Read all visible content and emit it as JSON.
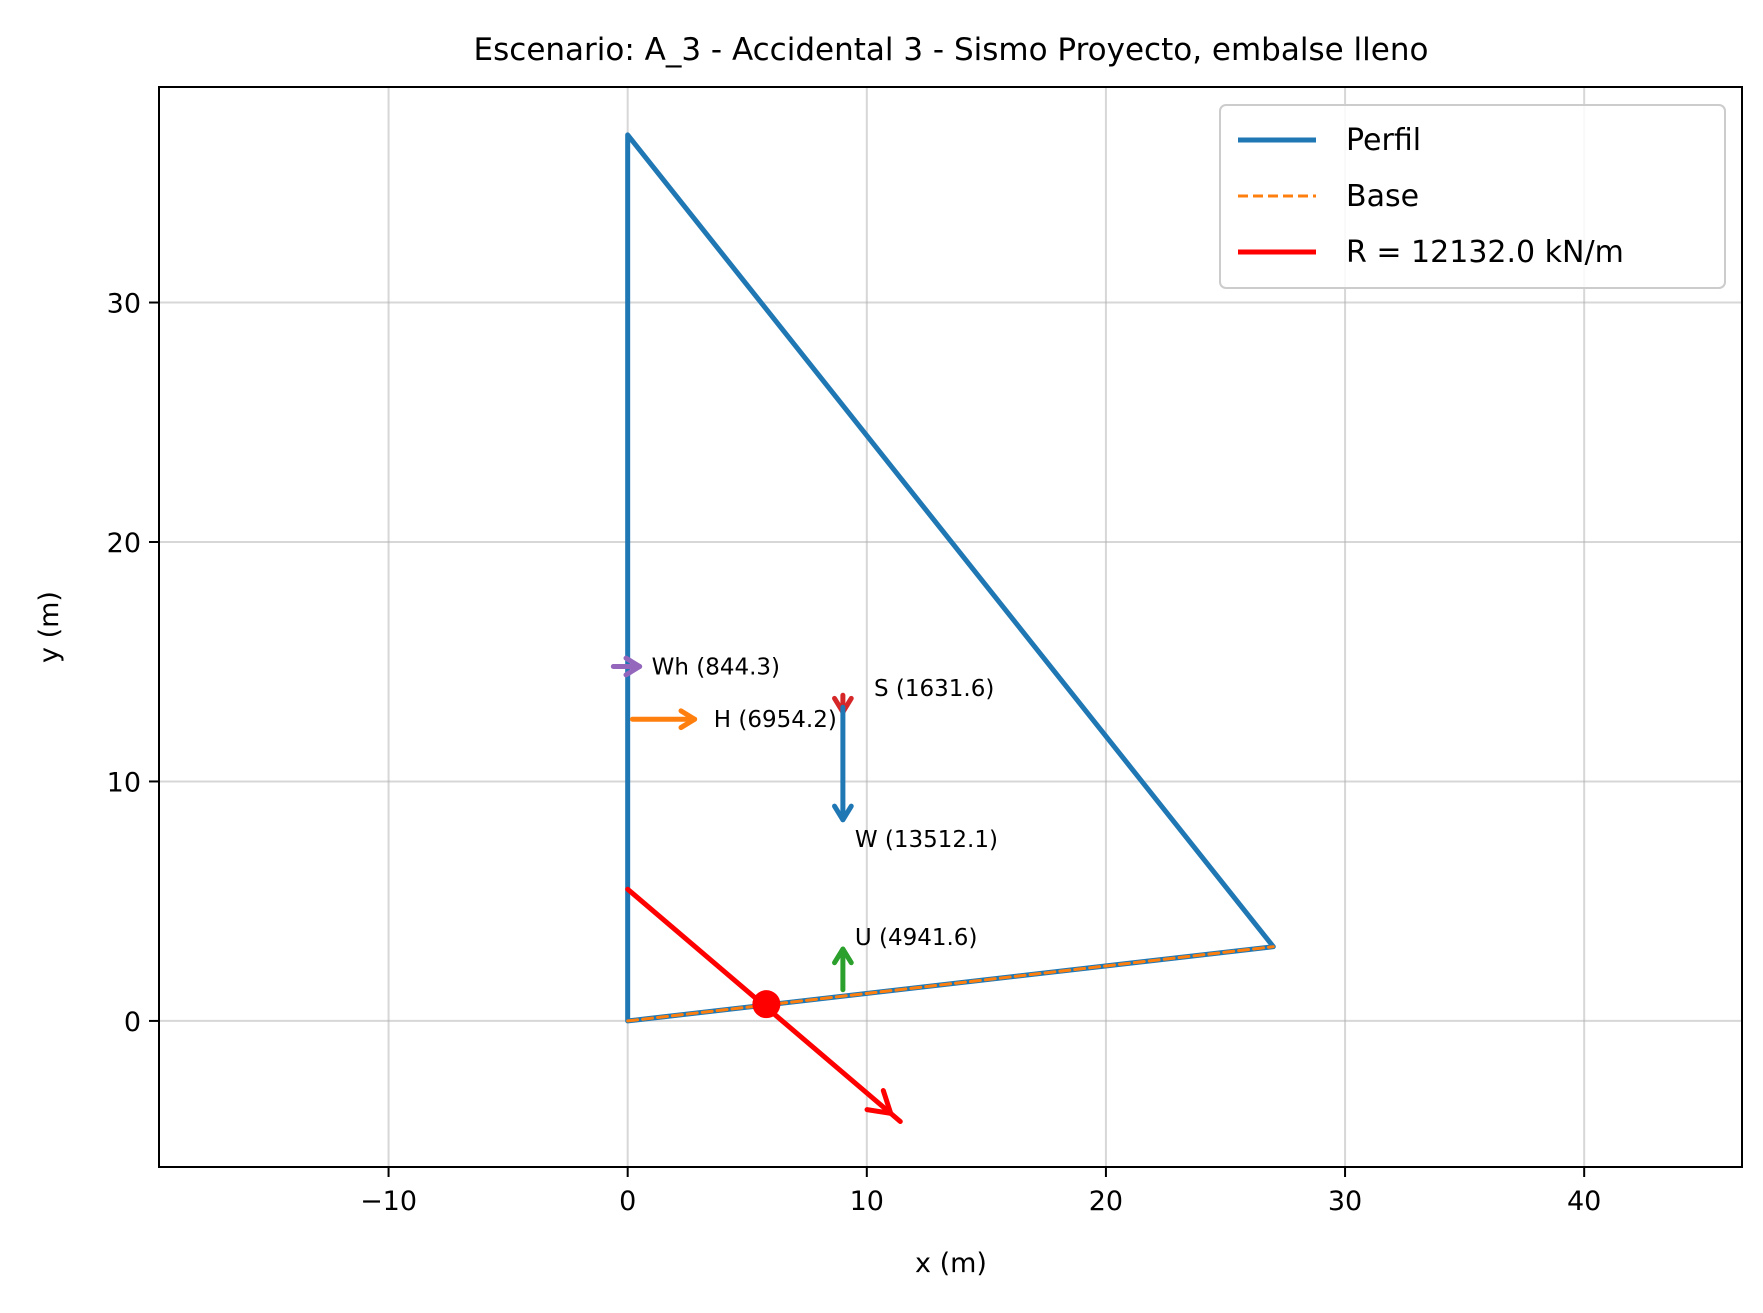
{
  "chart_data": {
    "type": "line",
    "title": "Escenario: A_3 - Accidental 3 - Sismo Proyecto, embalse lleno",
    "xlabel": "x (m)",
    "ylabel": "y (m)",
    "xlim": [
      -19.6,
      46.6
    ],
    "ylim": [
      -6.1,
      39.0
    ],
    "xticks": [
      -10,
      0,
      10,
      20,
      30,
      40
    ],
    "xtick_labels": [
      "−10",
      "0",
      "10",
      "20",
      "30",
      "40"
    ],
    "yticks": [
      0,
      10,
      20,
      30
    ],
    "ytick_labels": [
      "0",
      "10",
      "20",
      "30"
    ],
    "grid": true,
    "legend_position": "top-right",
    "series": [
      {
        "name": "Perfil",
        "color": "#1f77b4",
        "style": "solid",
        "points": [
          [
            0,
            0
          ],
          [
            0,
            37.0
          ],
          [
            27.0,
            3.1
          ],
          [
            0,
            0
          ]
        ]
      },
      {
        "name": "Base",
        "color": "#ff7f0e",
        "style": "dashed",
        "points": [
          [
            0,
            0
          ],
          [
            27.0,
            3.1
          ]
        ]
      },
      {
        "name": "R = 12132.0 kN/m",
        "color": "#ff0000",
        "style": "solid",
        "points": [
          [
            0,
            5.5
          ],
          [
            11.4,
            -4.2
          ]
        ]
      }
    ],
    "forces": [
      {
        "label": "Wh (844.3)",
        "color": "#9467bd",
        "from": [
          -0.6,
          14.8
        ],
        "to": [
          0.5,
          14.8
        ],
        "label_at": [
          1.0,
          14.8
        ]
      },
      {
        "label": "H (6954.2)",
        "color": "#ff7f0e",
        "from": [
          0.2,
          12.6
        ],
        "to": [
          2.8,
          12.6
        ],
        "label_at": [
          3.6,
          12.6
        ]
      },
      {
        "label": "S (1631.6)",
        "color": "#d62728",
        "from": [
          9.0,
          13.6
        ],
        "to": [
          9.0,
          12.9
        ],
        "label_at": [
          10.3,
          13.9
        ]
      },
      {
        "label": "W (13512.1)",
        "color": "#1f77b4",
        "from": [
          9.0,
          13.1
        ],
        "to": [
          9.0,
          8.4
        ],
        "label_at": [
          9.5,
          7.6
        ]
      },
      {
        "label": "U (4941.6)",
        "color": "#2ca02c",
        "from": [
          9.0,
          1.3
        ],
        "to": [
          9.0,
          3.0
        ],
        "label_at": [
          9.5,
          3.5
        ]
      }
    ],
    "resultant_point": {
      "x": 5.8,
      "y": 0.7,
      "color": "#ff0000"
    }
  }
}
